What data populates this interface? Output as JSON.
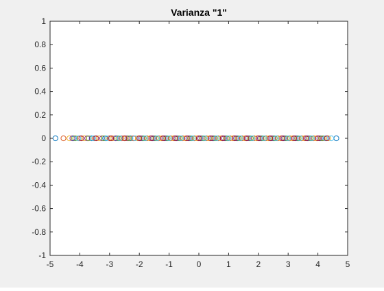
{
  "figure": {
    "background": "#f0f0f0",
    "axes_background": "#ffffff",
    "axis_color": "#262626"
  },
  "chart_data": {
    "type": "scatter",
    "title": "Varianza \"1\"",
    "xlabel": "",
    "ylabel": "",
    "xlim": [
      -5,
      5
    ],
    "ylim": [
      -1,
      1
    ],
    "x_ticks": [
      "-5",
      "-4",
      "-3",
      "-2",
      "-1",
      "0",
      "1",
      "2",
      "3",
      "4",
      "5"
    ],
    "y_ticks": [
      "1",
      "0.8",
      "0.6",
      "0.4",
      "0.2",
      "0",
      "-0.2",
      "-0.4",
      "-0.6",
      "-0.8",
      "-1"
    ],
    "x_tick_values": [
      -5,
      -4,
      -3,
      -2,
      -1,
      0,
      1,
      2,
      3,
      4,
      5
    ],
    "y_tick_values": [
      1,
      0.8,
      0.6,
      0.4,
      0.2,
      0,
      -0.2,
      -0.4,
      -0.6,
      -0.8,
      -1
    ],
    "grid": false,
    "marker": "circle-open",
    "colors": [
      "#0072bd",
      "#d95319",
      "#edb120",
      "#7e2f8e",
      "#77ac30",
      "#4dbeee",
      "#a2142f"
    ],
    "series": [
      {
        "color": "#0072bd",
        "x": [
          -4.82,
          -4.2,
          -3.6,
          -3.15,
          -2.75,
          -2.3,
          -1.9,
          -1.5,
          -1.1,
          -0.7,
          -0.3,
          0.1,
          0.5,
          0.9,
          1.3,
          1.7,
          2.1,
          2.5,
          2.9,
          3.3,
          3.7,
          4.1,
          4.62
        ]
      },
      {
        "color": "#d95319",
        "x": [
          -4.55,
          -4.0,
          -3.5,
          -3.0,
          -2.6,
          -2.2,
          -1.75,
          -1.35,
          -0.95,
          -0.55,
          -0.15,
          0.25,
          0.65,
          1.05,
          1.45,
          1.85,
          2.25,
          2.65,
          3.05,
          3.45,
          3.85,
          4.2
        ]
      },
      {
        "color": "#edb120",
        "x": [
          -4.35,
          -3.85,
          -3.35,
          -2.9,
          -2.45,
          -2.05,
          -1.65,
          -1.25,
          -0.85,
          -0.45,
          -0.05,
          0.35,
          0.75,
          1.15,
          1.55,
          1.95,
          2.35,
          2.75,
          3.15,
          3.55,
          3.95,
          4.35
        ]
      },
      {
        "color": "#7e2f8e",
        "x": [
          -4.25,
          -3.75,
          -3.25,
          -2.8,
          -2.4,
          -1.95,
          -1.55,
          -1.15,
          -0.75,
          -0.35,
          0.05,
          0.45,
          0.85,
          1.25,
          1.65,
          2.05,
          2.45,
          2.85,
          3.25,
          3.65,
          4.05
        ]
      },
      {
        "color": "#77ac30",
        "x": [
          -4.15,
          -3.7,
          -3.2,
          -2.7,
          -2.35,
          -1.85,
          -1.45,
          -1.05,
          -0.65,
          -0.25,
          0.15,
          0.55,
          0.95,
          1.35,
          1.75,
          2.15,
          2.55,
          2.95,
          3.35,
          3.75,
          4.15
        ]
      },
      {
        "color": "#4dbeee",
        "x": [
          -4.05,
          -3.55,
          -3.1,
          -2.65,
          -2.15,
          -1.8,
          -1.4,
          -1.0,
          -0.6,
          -0.2,
          0.2,
          0.6,
          1.0,
          1.4,
          1.8,
          2.2,
          2.6,
          3.0,
          3.4,
          3.8,
          4.25,
          4.45
        ]
      },
      {
        "color": "#a2142f",
        "x": [
          -3.95,
          -3.45,
          -2.95,
          -2.5,
          -2.0,
          -1.6,
          -1.2,
          -0.8,
          -0.4,
          0.0,
          0.4,
          0.8,
          1.2,
          1.6,
          2.0,
          2.4,
          2.8,
          3.2,
          3.6,
          4.0,
          4.3
        ]
      }
    ],
    "y_value": 0
  }
}
